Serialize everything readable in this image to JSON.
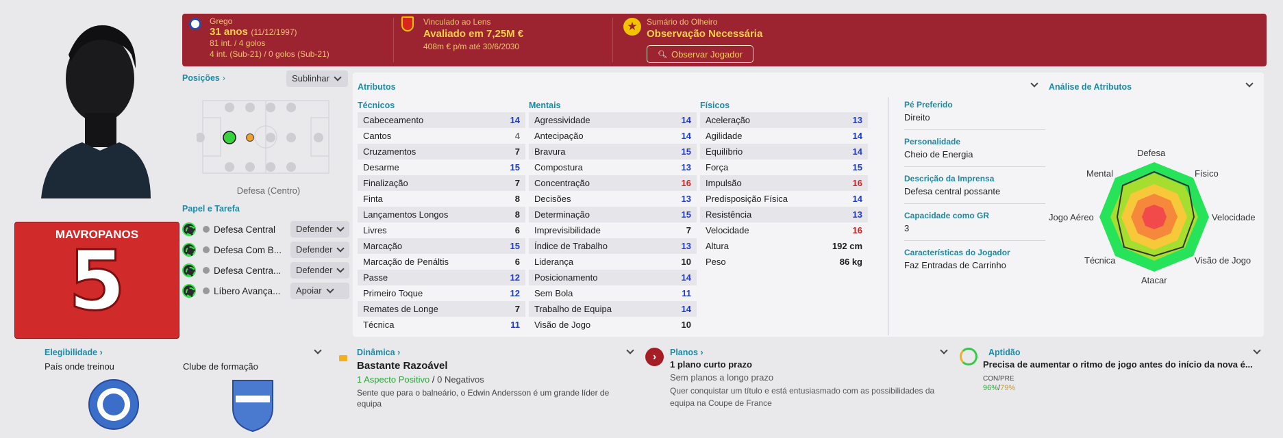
{
  "player": {
    "name": "MAVROPANOS",
    "number": "5"
  },
  "header": {
    "nationality": "Grego",
    "age": "31 anos",
    "dob": "(11/12/1997)",
    "caps": "81 int. / 4 golos",
    "u21": "4 int. (Sub-21) / 0 golos (Sub-21)",
    "club_label": "Vinculado ao Lens",
    "value": "Avaliado em 7,25M €",
    "wage": "408m € p/m até 30/6/2030",
    "scout_label": "Sumário do Olheiro",
    "scout_status": "Observação Necessária",
    "scout_button": "Observar Jogador"
  },
  "positions": {
    "title": "Posições",
    "highlight_btn": "Sublinhar",
    "position_label": "Defesa (Centro)"
  },
  "roles": {
    "title": "Papel e Tarefa",
    "items": [
      {
        "name": "Defesa Central",
        "duty": "Defender"
      },
      {
        "name": "Defesa Com B...",
        "duty": "Defender"
      },
      {
        "name": "Defesa Centra...",
        "duty": "Defender"
      },
      {
        "name": "Líbero Avança...",
        "duty": "Apoiar"
      }
    ]
  },
  "attributes": {
    "title": "Atributos",
    "technical_title": "Técnicos",
    "mental_title": "Mentais",
    "physical_title": "Físicos",
    "technical": [
      {
        "n": "Cabeceamento",
        "v": "14",
        "c": "#1e3ccc"
      },
      {
        "n": "Cantos",
        "v": "4",
        "c": "#777777"
      },
      {
        "n": "Cruzamentos",
        "v": "7",
        "c": "#222222"
      },
      {
        "n": "Desarme",
        "v": "15",
        "c": "#1e3ccc"
      },
      {
        "n": "Finalização",
        "v": "7",
        "c": "#222222"
      },
      {
        "n": "Finta",
        "v": "8",
        "c": "#222222"
      },
      {
        "n": "Lançamentos Longos",
        "v": "8",
        "c": "#222222"
      },
      {
        "n": "Livres",
        "v": "6",
        "c": "#222222"
      },
      {
        "n": "Marcação",
        "v": "15",
        "c": "#1e3ccc"
      },
      {
        "n": "Marcação de Penáltis",
        "v": "6",
        "c": "#222222"
      },
      {
        "n": "Passe",
        "v": "12",
        "c": "#1e3ccc"
      },
      {
        "n": "Primeiro Toque",
        "v": "12",
        "c": "#1e3ccc"
      },
      {
        "n": "Remates de Longe",
        "v": "7",
        "c": "#222222"
      },
      {
        "n": "Técnica",
        "v": "11",
        "c": "#1e3ccc"
      }
    ],
    "mental": [
      {
        "n": "Agressividade",
        "v": "14",
        "c": "#1e3ccc"
      },
      {
        "n": "Antecipação",
        "v": "14",
        "c": "#1e3ccc"
      },
      {
        "n": "Bravura",
        "v": "15",
        "c": "#1e3ccc"
      },
      {
        "n": "Compostura",
        "v": "13",
        "c": "#1e3ccc"
      },
      {
        "n": "Concentração",
        "v": "16",
        "c": "#d42020"
      },
      {
        "n": "Decisões",
        "v": "13",
        "c": "#1e3ccc"
      },
      {
        "n": "Determinação",
        "v": "15",
        "c": "#1e3ccc"
      },
      {
        "n": "Imprevisibilidade",
        "v": "7",
        "c": "#222222"
      },
      {
        "n": "Índice de Trabalho",
        "v": "13",
        "c": "#1e3ccc"
      },
      {
        "n": "Liderança",
        "v": "10",
        "c": "#222222"
      },
      {
        "n": "Posicionamento",
        "v": "14",
        "c": "#1e3ccc"
      },
      {
        "n": "Sem Bola",
        "v": "11",
        "c": "#1e3ccc"
      },
      {
        "n": "Trabalho de Equipa",
        "v": "14",
        "c": "#1e3ccc"
      },
      {
        "n": "Visão de Jogo",
        "v": "10",
        "c": "#222222"
      }
    ],
    "physical": [
      {
        "n": "Aceleração",
        "v": "13",
        "c": "#1e3ccc"
      },
      {
        "n": "Agilidade",
        "v": "14",
        "c": "#1e3ccc"
      },
      {
        "n": "Equilíbrio",
        "v": "14",
        "c": "#1e3ccc"
      },
      {
        "n": "Força",
        "v": "15",
        "c": "#1e3ccc"
      },
      {
        "n": "Impulsão",
        "v": "16",
        "c": "#d42020"
      },
      {
        "n": "Predisposição Física",
        "v": "14",
        "c": "#1e3ccc"
      },
      {
        "n": "Resistência",
        "v": "13",
        "c": "#1e3ccc"
      },
      {
        "n": "Velocidade",
        "v": "16",
        "c": "#d42020"
      }
    ],
    "height_label": "Altura",
    "height": "192 cm",
    "weight_label": "Peso",
    "weight": "86 kg"
  },
  "info": {
    "foot_label": "Pé Preferido",
    "foot": "Direito",
    "personality_label": "Personalidade",
    "personality": "Cheio de Energia",
    "press_label": "Descrição da Imprensa",
    "press": "Defesa central possante",
    "gk_label": "Capacidade como GR",
    "gk": "3",
    "traits_label": "Características do Jogador",
    "traits": "Faz Entradas de Carrinho"
  },
  "analysis": {
    "title": "Análise de Atributos",
    "axes": [
      "Defesa",
      "Físico",
      "Velocidade",
      "Visão de Jogo",
      "Atacar",
      "Técnica",
      "Jogo Aéreo",
      "Mental"
    ]
  },
  "bottom": {
    "eligibility_title": "Elegibilidade",
    "trained_country": "País onde treinou",
    "youth_club": "Clube de formação",
    "dynamics_title": "Dinâmica",
    "dynamics_value": "Bastante Razoável",
    "positive": "1 Aspecto Positivo",
    "slash": "/",
    "negative": "0 Negativos",
    "dynamics_desc": "Sente que para o balneário, o Edwin Andersson é um grande líder de equipa",
    "plans_title": "Planos",
    "plans_value": "1 plano curto prazo",
    "plans_long": "Sem planos a longo prazo",
    "plans_desc": "Quer conquistar um título e está entusiasmado com as possibilidades da equipa na Coupe de France",
    "aptitude_title": "Aptidão",
    "aptitude_value": "Precisa de aumentar o ritmo de jogo antes do início da nova é...",
    "con_pre": "CON/PRE",
    "con": "96%",
    "pre": "79%"
  },
  "colors": {
    "header_red": "#9b2430",
    "accent": "#1b8aa6",
    "green": "#35e04c"
  }
}
